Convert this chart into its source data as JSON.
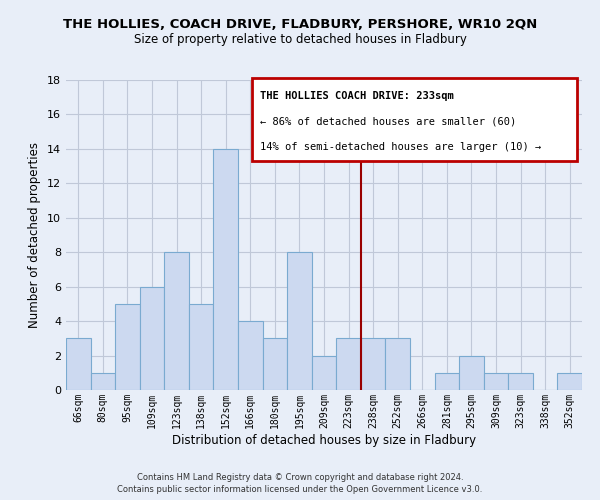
{
  "title": "THE HOLLIES, COACH DRIVE, FLADBURY, PERSHORE, WR10 2QN",
  "subtitle": "Size of property relative to detached houses in Fladbury",
  "xlabel": "Distribution of detached houses by size in Fladbury",
  "ylabel": "Number of detached properties",
  "bar_labels": [
    "66sqm",
    "80sqm",
    "95sqm",
    "109sqm",
    "123sqm",
    "138sqm",
    "152sqm",
    "166sqm",
    "180sqm",
    "195sqm",
    "209sqm",
    "223sqm",
    "238sqm",
    "252sqm",
    "266sqm",
    "281sqm",
    "295sqm",
    "309sqm",
    "323sqm",
    "338sqm",
    "352sqm"
  ],
  "bar_values": [
    3,
    1,
    5,
    6,
    8,
    5,
    14,
    4,
    3,
    8,
    2,
    3,
    3,
    3,
    0,
    1,
    2,
    1,
    1,
    0,
    1
  ],
  "bar_color": "#ccd9f0",
  "bar_edgecolor": "#7aaad0",
  "vline_color": "#990000",
  "ylim": [
    0,
    18
  ],
  "yticks": [
    0,
    2,
    4,
    6,
    8,
    10,
    12,
    14,
    16,
    18
  ],
  "annotation_title": "THE HOLLIES COACH DRIVE: 233sqm",
  "annotation_line1": "← 86% of detached houses are smaller (60)",
  "annotation_line2": "14% of semi-detached houses are larger (10) →",
  "annotation_box_edgecolor": "#bb0000",
  "footer_line1": "Contains HM Land Registry data © Crown copyright and database right 2024.",
  "footer_line2": "Contains public sector information licensed under the Open Government Licence v3.0.",
  "background_color": "#e8eef8",
  "plot_background": "#e8eef8",
  "grid_color": "#c0c8d8"
}
